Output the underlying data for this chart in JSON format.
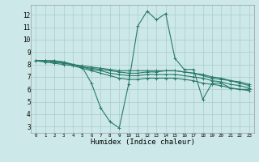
{
  "xlabel": "Humidex (Indice chaleur)",
  "bg_color": "#cce8e8",
  "line_color": "#2a7a6a",
  "grid_color": "#aacccc",
  "xlim": [
    -0.5,
    23.5
  ],
  "ylim": [
    2.5,
    12.8
  ],
  "xticks": [
    0,
    1,
    2,
    3,
    4,
    5,
    6,
    7,
    8,
    9,
    10,
    11,
    12,
    13,
    14,
    15,
    16,
    17,
    18,
    19,
    20,
    21,
    22,
    23
  ],
  "yticks": [
    3,
    4,
    5,
    6,
    7,
    8,
    9,
    10,
    11,
    12
  ],
  "lines": [
    {
      "x": [
        0,
        1,
        2,
        3,
        4,
        5,
        6,
        7,
        8,
        9,
        10,
        11,
        12,
        13,
        14,
        15,
        16,
        17,
        18,
        19,
        20,
        21,
        22,
        23
      ],
      "y": [
        8.3,
        8.3,
        8.3,
        8.2,
        8.0,
        7.8,
        6.5,
        4.5,
        3.4,
        2.9,
        6.4,
        11.1,
        12.3,
        11.6,
        12.1,
        8.5,
        7.6,
        7.6,
        5.2,
        6.5,
        6.5,
        6.1,
        6.0,
        6.0
      ]
    },
    {
      "x": [
        0,
        1,
        2,
        3,
        4,
        5,
        6,
        7,
        8,
        9,
        10,
        11,
        12,
        13,
        14,
        15,
        16,
        17,
        18,
        19,
        20,
        21,
        22,
        23
      ],
      "y": [
        8.3,
        8.3,
        8.3,
        8.2,
        8.0,
        7.8,
        7.7,
        7.6,
        7.5,
        7.4,
        7.3,
        7.3,
        7.4,
        7.4,
        7.5,
        7.5,
        7.4,
        7.3,
        7.1,
        6.9,
        6.8,
        6.7,
        6.5,
        6.3
      ]
    },
    {
      "x": [
        0,
        1,
        2,
        3,
        4,
        5,
        6,
        7,
        8,
        9,
        10,
        11,
        12,
        13,
        14,
        15,
        16,
        17,
        18,
        19,
        20,
        21,
        22,
        23
      ],
      "y": [
        8.3,
        8.3,
        8.2,
        8.1,
        8.0,
        7.9,
        7.8,
        7.7,
        7.6,
        7.5,
        7.5,
        7.5,
        7.5,
        7.5,
        7.5,
        7.5,
        7.4,
        7.3,
        7.2,
        7.0,
        6.9,
        6.7,
        6.6,
        6.4
      ]
    },
    {
      "x": [
        0,
        1,
        2,
        3,
        4,
        5,
        6,
        7,
        8,
        9,
        10,
        11,
        12,
        13,
        14,
        15,
        16,
        17,
        18,
        19,
        20,
        21,
        22,
        23
      ],
      "y": [
        8.3,
        8.3,
        8.2,
        8.1,
        8.0,
        7.8,
        7.6,
        7.5,
        7.3,
        7.2,
        7.1,
        7.1,
        7.2,
        7.2,
        7.2,
        7.2,
        7.1,
        7.0,
        6.9,
        6.7,
        6.6,
        6.4,
        6.3,
        6.1
      ]
    },
    {
      "x": [
        0,
        1,
        2,
        3,
        4,
        5,
        6,
        7,
        8,
        9,
        10,
        11,
        12,
        13,
        14,
        15,
        16,
        17,
        18,
        19,
        20,
        21,
        22,
        23
      ],
      "y": [
        8.3,
        8.2,
        8.1,
        8.0,
        7.9,
        7.7,
        7.5,
        7.3,
        7.1,
        6.9,
        6.8,
        6.8,
        6.9,
        6.9,
        6.9,
        6.9,
        6.8,
        6.7,
        6.5,
        6.4,
        6.3,
        6.1,
        6.0,
        5.9
      ]
    }
  ]
}
